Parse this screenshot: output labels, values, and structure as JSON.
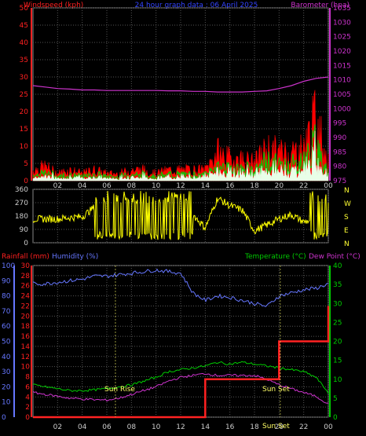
{
  "header": {
    "left_label": "Windspeed (kph)",
    "center_label": "24 hour graph data : 06 April 2025",
    "right_label": "Barometer (hpa)"
  },
  "wind_panel": {
    "left_ticks": [
      "0",
      "5",
      "10",
      "15",
      "20",
      "25",
      "30",
      "35",
      "40",
      "45",
      "50"
    ],
    "right_ticks": [
      "975",
      "980",
      "985",
      "990",
      "995",
      "1000",
      "1005",
      "1010",
      "1015",
      "1020",
      "1025",
      "1030",
      "1035"
    ]
  },
  "dir_panel": {
    "left_ticks": [
      "0",
      "90",
      "180",
      "270",
      "360"
    ],
    "right_letters": [
      "N",
      "W",
      "S",
      "E",
      "N"
    ]
  },
  "bottom_panel": {
    "rainfall_label": "Rainfall (mm)",
    "humidity_label": "Humidity (%)",
    "temperature_label": "Temperature (°C)",
    "dewpoint_label": "Dew Point (°C)",
    "humidity_ticks": [
      "0",
      "10",
      "20",
      "30",
      "40",
      "50",
      "60",
      "70",
      "80",
      "90",
      "100"
    ],
    "rain_ticks": [
      "0",
      "2",
      "4",
      "6",
      "8",
      "10",
      "12",
      "14",
      "16",
      "18",
      "20",
      "22",
      "24",
      "26",
      "28",
      "30"
    ],
    "temp_ticks": [
      "0",
      "5",
      "10",
      "15",
      "20",
      "25",
      "30",
      "35",
      "40"
    ],
    "sunrise_label": "Sun Rise",
    "sunset_label": "Sun Set",
    "bottom_sunset_label": "Sun Set"
  },
  "x_ticks": [
    "02",
    "04",
    "06",
    "08",
    "10",
    "12",
    "14",
    "16",
    "18",
    "20",
    "22",
    "00"
  ],
  "colors": {
    "windspeed": "#ff0000",
    "gust": "#00cc00",
    "avg": "#ffffff",
    "barometer": "#cc33cc",
    "direction": "#ffff00",
    "humidity": "#6677ff",
    "rainfall": "#ff2222",
    "temperature": "#00cc00",
    "dewpoint": "#cc33cc",
    "axis_red": "#ff2020",
    "axis_green": "#00cc00",
    "axis_blue": "#6677ff",
    "grid": "#555555"
  },
  "chart_data": [
    {
      "type": "line",
      "title": "24 hour graph data : 06 April 2025",
      "x": [
        0,
        1,
        2,
        3,
        4,
        5,
        6,
        7,
        8,
        9,
        10,
        11,
        12,
        13,
        14,
        15,
        16,
        17,
        18,
        19,
        20,
        21,
        22,
        23,
        24
      ],
      "series": [
        {
          "name": "Windspeed (kph)",
          "axis": "left",
          "values": [
            3,
            4,
            2,
            3,
            2,
            3,
            2,
            2,
            3,
            3,
            2,
            3,
            3,
            3,
            3,
            8,
            6,
            6,
            5,
            9,
            8,
            8,
            9,
            18,
            5
          ]
        },
        {
          "name": "Barometer (hpa)",
          "axis": "right",
          "values": [
            1008,
            1007.5,
            1007,
            1006.8,
            1006.5,
            1006.5,
            1006.3,
            1006.3,
            1006.3,
            1006.3,
            1006.3,
            1006.2,
            1006.2,
            1006,
            1006,
            1005.8,
            1005.8,
            1005.8,
            1006,
            1006.2,
            1007,
            1008,
            1009.5,
            1010.5,
            1011
          ]
        }
      ],
      "ylim_left": [
        0,
        50
      ],
      "ylim_right": [
        975,
        1035
      ]
    },
    {
      "type": "line",
      "x": [
        0,
        1,
        2,
        3,
        4,
        5,
        6,
        7,
        8,
        9,
        10,
        11,
        12,
        13,
        14,
        15,
        16,
        17,
        18,
        19,
        20,
        21,
        22,
        23,
        24
      ],
      "series": [
        {
          "name": "Wind direction",
          "values": [
            160,
            160,
            160,
            170,
            175,
            240,
            190,
            120,
            250,
            240,
            150,
            120,
            200,
            190,
            100,
            300,
            250,
            220,
            80,
            120,
            160,
            190,
            140,
            160,
            120
          ]
        }
      ],
      "ylim": [
        0,
        360
      ]
    },
    {
      "type": "line",
      "x": [
        0,
        1,
        2,
        3,
        4,
        5,
        6,
        7,
        8,
        9,
        10,
        11,
        12,
        13,
        14,
        15,
        16,
        17,
        18,
        19,
        20,
        21,
        22,
        23,
        24
      ],
      "series": [
        {
          "name": "Humidity (%)",
          "axis": "left",
          "values": [
            88,
            88,
            89,
            90,
            91,
            93,
            93,
            94,
            95,
            96,
            97,
            96,
            95,
            82,
            77,
            80,
            79,
            77,
            75,
            73,
            80,
            82,
            84,
            85,
            88
          ]
        },
        {
          "name": "Rainfall (mm)",
          "axis": "left2",
          "values": [
            0,
            0,
            0,
            0,
            0,
            0,
            0,
            0,
            0,
            0,
            0,
            0,
            0,
            0,
            7.5,
            7.5,
            7.5,
            7.5,
            7.5,
            7.5,
            15,
            15,
            15,
            15,
            22
          ]
        },
        {
          "name": "Temperature (°C)",
          "axis": "right",
          "values": [
            8.5,
            8,
            7.5,
            7,
            7,
            7.2,
            7.5,
            8,
            8.5,
            9.5,
            10.5,
            12,
            12.5,
            13,
            13.5,
            14.5,
            14,
            14.5,
            14,
            13.5,
            13,
            12.5,
            12,
            10.5,
            6.5
          ]
        },
        {
          "name": "Dew Point (°C)",
          "axis": "right",
          "values": [
            6.5,
            6,
            5.5,
            5,
            4.8,
            4.6,
            4.5,
            5,
            6,
            7,
            8,
            9.5,
            10.5,
            11,
            11.5,
            11,
            11,
            11,
            11,
            10,
            8.5,
            7.5,
            6.5,
            5.5,
            3.5
          ]
        }
      ],
      "ylim_left": [
        0,
        100
      ],
      "ylim_left2": [
        0,
        30
      ],
      "ylim_right": [
        0,
        40
      ]
    }
  ]
}
